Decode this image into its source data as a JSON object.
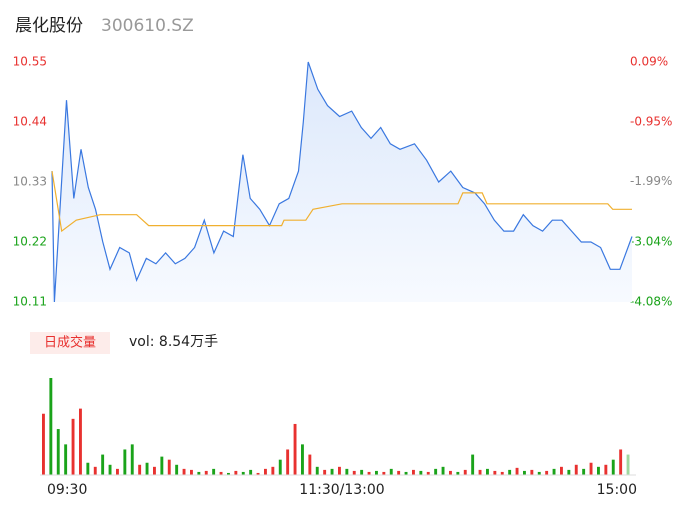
{
  "chart_data": {
    "type": "line",
    "title": "晨化股份",
    "subtitle": "300610.SZ",
    "ylim": [
      10.11,
      10.55
    ],
    "yticks": [
      10.55,
      10.44,
      10.33,
      10.22,
      10.11
    ],
    "ytick_colors": [
      "#e8312f",
      "#e8312f",
      "#888888",
      "#1aa31a",
      "#1aa31a"
    ],
    "y2lim": [
      -4.08,
      0.09
    ],
    "y2ticks": [
      {
        "value": 0.09,
        "label": "0.09%"
      },
      {
        "value": -0.95,
        "label": "-0.95%"
      },
      {
        "value": -1.99,
        "label": "-1.99%"
      },
      {
        "value": -3.04,
        "label": "-3.04%"
      },
      {
        "value": -4.08,
        "label": "-4.08%"
      }
    ],
    "xlim": [
      0,
      240
    ],
    "xticks": [
      {
        "value": 0,
        "label": "09:30"
      },
      {
        "value": 120,
        "label": "11:30/13:00"
      },
      {
        "value": 240,
        "label": "15:00"
      }
    ],
    "series": [
      {
        "name": "price",
        "color": "#3a78e0",
        "x": [
          0,
          1,
          3,
          6,
          9,
          12,
          15,
          18,
          21,
          24,
          28,
          32,
          35,
          39,
          43,
          47,
          51,
          55,
          59,
          63,
          67,
          71,
          75,
          79,
          82,
          86,
          90,
          94,
          98,
          102,
          104,
          106,
          110,
          114,
          119,
          124,
          128,
          132,
          136,
          140,
          144,
          150,
          155,
          160,
          165,
          170,
          175,
          179,
          183,
          187,
          191,
          195,
          199,
          203,
          207,
          211,
          215,
          219,
          223,
          227,
          231,
          235,
          240
        ],
        "values": [
          10.35,
          10.11,
          10.26,
          10.48,
          10.3,
          10.39,
          10.32,
          10.28,
          10.22,
          10.17,
          10.21,
          10.2,
          10.15,
          10.19,
          10.18,
          10.2,
          10.18,
          10.19,
          10.21,
          10.26,
          10.2,
          10.24,
          10.23,
          10.38,
          10.3,
          10.28,
          10.25,
          10.29,
          10.3,
          10.35,
          10.44,
          10.55,
          10.5,
          10.47,
          10.45,
          10.46,
          10.43,
          10.41,
          10.43,
          10.4,
          10.39,
          10.4,
          10.37,
          10.33,
          10.35,
          10.32,
          10.31,
          10.29,
          10.26,
          10.24,
          10.24,
          10.27,
          10.25,
          10.24,
          10.26,
          10.26,
          10.24,
          10.22,
          10.22,
          10.21,
          10.17,
          10.17,
          10.23
        ]
      },
      {
        "name": "average",
        "color": "#f0b030",
        "x": [
          0,
          4,
          10,
          20,
          35,
          40,
          95,
          96,
          105,
          108,
          120,
          168,
          170,
          178,
          180,
          230,
          232,
          240
        ],
        "values": [
          10.35,
          10.24,
          10.26,
          10.27,
          10.27,
          10.25,
          10.25,
          10.26,
          10.26,
          10.28,
          10.29,
          10.29,
          10.31,
          10.31,
          10.29,
          10.29,
          10.28,
          10.28
        ]
      }
    ],
    "volume_title": "日成交量",
    "volume_label": "vol: 8.54万手",
    "volume": {
      "values": [
        60,
        95,
        45,
        30,
        55,
        65,
        12,
        8,
        20,
        10,
        6,
        25,
        30,
        10,
        12,
        8,
        18,
        15,
        10,
        6,
        5,
        3,
        4,
        6,
        3,
        2,
        4,
        3,
        5,
        2,
        6,
        8,
        15,
        25,
        50,
        30,
        20,
        8,
        5,
        6,
        8,
        6,
        4,
        5,
        3,
        4,
        3,
        6,
        4,
        3,
        5,
        4,
        3,
        6,
        8,
        4,
        3,
        5,
        20,
        5,
        6,
        4,
        3,
        5,
        7,
        4,
        5,
        3,
        4,
        6,
        8,
        5,
        10,
        6,
        12,
        8,
        10,
        15,
        25,
        20
      ],
      "colors": [
        "#e8312f",
        "#1aa31a",
        "#1aa31a",
        "#1aa31a",
        "#e8312f",
        "#e8312f",
        "#1aa31a",
        "#e8312f",
        "#1aa31a",
        "#1aa31a",
        "#e8312f",
        "#1aa31a",
        "#1aa31a",
        "#e8312f",
        "#1aa31a",
        "#e8312f",
        "#1aa31a",
        "#e8312f",
        "#1aa31a",
        "#e8312f",
        "#e8312f",
        "#1aa31a",
        "#e8312f",
        "#1aa31a",
        "#e8312f",
        "#1aa31a",
        "#e8312f",
        "#1aa31a",
        "#1aa31a",
        "#e8312f",
        "#e8312f",
        "#e8312f",
        "#1aa31a",
        "#e8312f",
        "#e8312f",
        "#1aa31a",
        "#e8312f",
        "#1aa31a",
        "#e8312f",
        "#1aa31a",
        "#e8312f",
        "#1aa31a",
        "#e8312f",
        "#1aa31a",
        "#e8312f",
        "#1aa31a",
        "#e8312f",
        "#1aa31a",
        "#e8312f",
        "#1aa31a",
        "#e8312f",
        "#1aa31a",
        "#e8312f",
        "#1aa31a",
        "#1aa31a",
        "#e8312f",
        "#1aa31a",
        "#e8312f",
        "#1aa31a",
        "#e8312f",
        "#1aa31a",
        "#e8312f",
        "#e8312f",
        "#1aa31a",
        "#e8312f",
        "#1aa31a",
        "#e8312f",
        "#1aa31a",
        "#e8312f",
        "#1aa31a",
        "#e8312f",
        "#1aa31a",
        "#e8312f",
        "#1aa31a",
        "#e8312f",
        "#1aa31a",
        "#e8312f",
        "#1aa31a",
        "#e8312f",
        "#9fd89f"
      ]
    }
  }
}
